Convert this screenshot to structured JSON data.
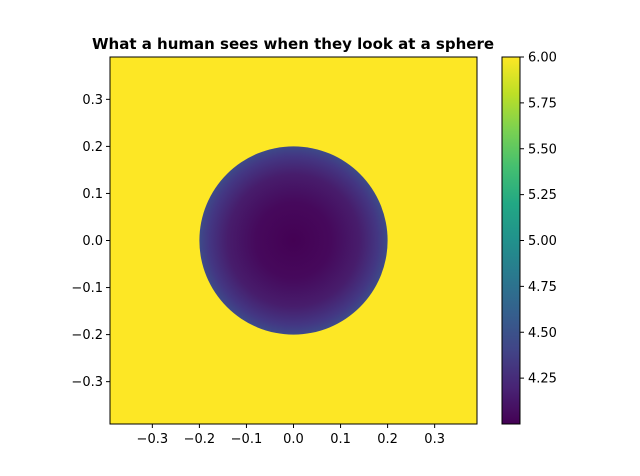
{
  "chart_data": {
    "type": "heatmap",
    "title": "What a human sees when they look at a sphere",
    "xlabel": "",
    "ylabel": "",
    "xlim": [
      -0.39,
      0.39
    ],
    "ylim": [
      -0.39,
      0.39
    ],
    "xticks": [
      -0.3,
      -0.2,
      -0.1,
      0.0,
      0.1,
      0.2,
      0.3
    ],
    "xtick_labels": [
      "−0.3",
      "−0.2",
      "−0.1",
      "0.0",
      "0.1",
      "0.2",
      "0.3"
    ],
    "yticks": [
      0.3,
      0.2,
      0.1,
      0.0,
      -0.1,
      -0.2,
      -0.3
    ],
    "ytick_labels": [
      "0.3",
      "0.2",
      "0.1",
      "0.0",
      "−0.1",
      "−0.2",
      "−0.3"
    ],
    "colormap": "viridis",
    "colorbar": {
      "vmin": 4.0,
      "vmax": 6.0,
      "ticks": [
        6.0,
        5.75,
        5.5,
        5.25,
        5.0,
        4.75,
        4.5,
        4.25
      ],
      "tick_labels": [
        "6.00",
        "5.75",
        "5.50",
        "5.25",
        "5.00",
        "4.75",
        "4.50",
        "4.25"
      ]
    },
    "field": {
      "background_value": 6.0,
      "disk_center": [
        0.0,
        0.0
      ],
      "disk_radius": 0.2,
      "center_value": 4.0,
      "edge_value": 4.6
    }
  }
}
